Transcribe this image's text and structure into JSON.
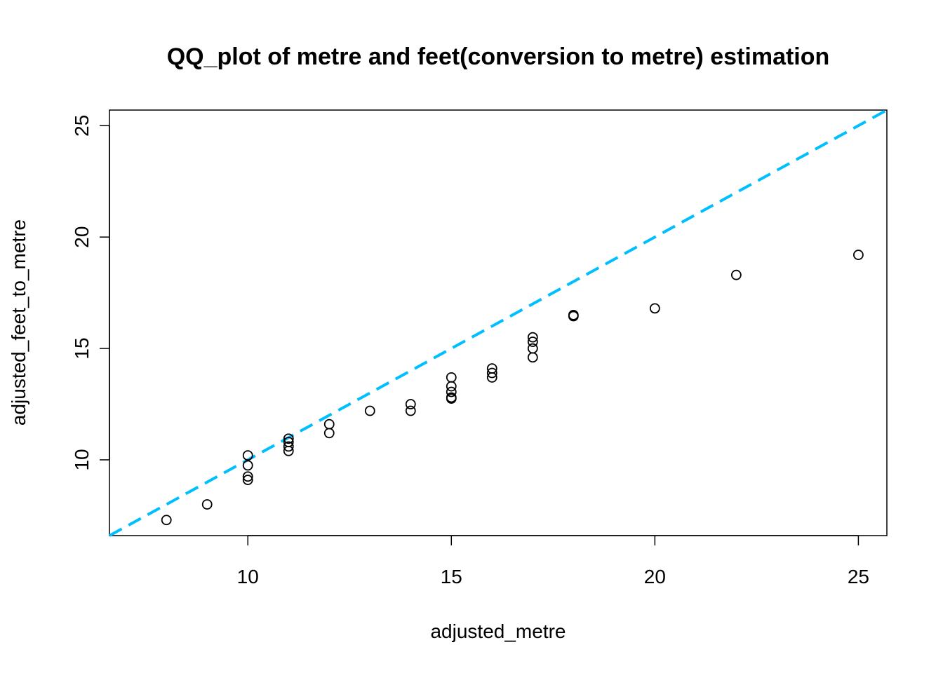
{
  "chart_data": {
    "type": "scatter",
    "title": "QQ_plot of metre and feet(conversion to metre) estimation",
    "xlabel": "adjusted_metre",
    "ylabel": "adjusted_feet_to_metre",
    "xlim": [
      6.6,
      25.7
    ],
    "ylim": [
      6.6,
      25.7
    ],
    "xticks": [
      10,
      15,
      20,
      25
    ],
    "yticks": [
      10,
      15,
      20,
      25
    ],
    "grid": false,
    "point_style": "open-circle",
    "points": [
      {
        "x": 8,
        "y": 7.3
      },
      {
        "x": 9,
        "y": 8.0
      },
      {
        "x": 10,
        "y": 9.1
      },
      {
        "x": 10,
        "y": 9.25
      },
      {
        "x": 10,
        "y": 9.75
      },
      {
        "x": 10,
        "y": 10.2
      },
      {
        "x": 11,
        "y": 10.4
      },
      {
        "x": 11,
        "y": 10.6
      },
      {
        "x": 11,
        "y": 10.8
      },
      {
        "x": 11,
        "y": 10.95
      },
      {
        "x": 12,
        "y": 11.2
      },
      {
        "x": 12,
        "y": 11.6
      },
      {
        "x": 13,
        "y": 12.2
      },
      {
        "x": 14,
        "y": 12.2
      },
      {
        "x": 14,
        "y": 12.5
      },
      {
        "x": 15,
        "y": 12.75
      },
      {
        "x": 15,
        "y": 12.8
      },
      {
        "x": 15,
        "y": 13.05
      },
      {
        "x": 15,
        "y": 13.3
      },
      {
        "x": 15,
        "y": 13.7
      },
      {
        "x": 16,
        "y": 13.7
      },
      {
        "x": 16,
        "y": 13.9
      },
      {
        "x": 16,
        "y": 14.1
      },
      {
        "x": 17,
        "y": 14.6
      },
      {
        "x": 17,
        "y": 15.0
      },
      {
        "x": 17,
        "y": 15.3
      },
      {
        "x": 17,
        "y": 15.5
      },
      {
        "x": 18,
        "y": 16.45
      },
      {
        "x": 18,
        "y": 16.5
      },
      {
        "x": 20,
        "y": 16.8
      },
      {
        "x": 22,
        "y": 18.3
      },
      {
        "x": 25,
        "y": 19.2
      }
    ],
    "reference_line": {
      "intercept": 0,
      "slope": 1,
      "style": "dashed",
      "color": "#00BFFF"
    }
  }
}
